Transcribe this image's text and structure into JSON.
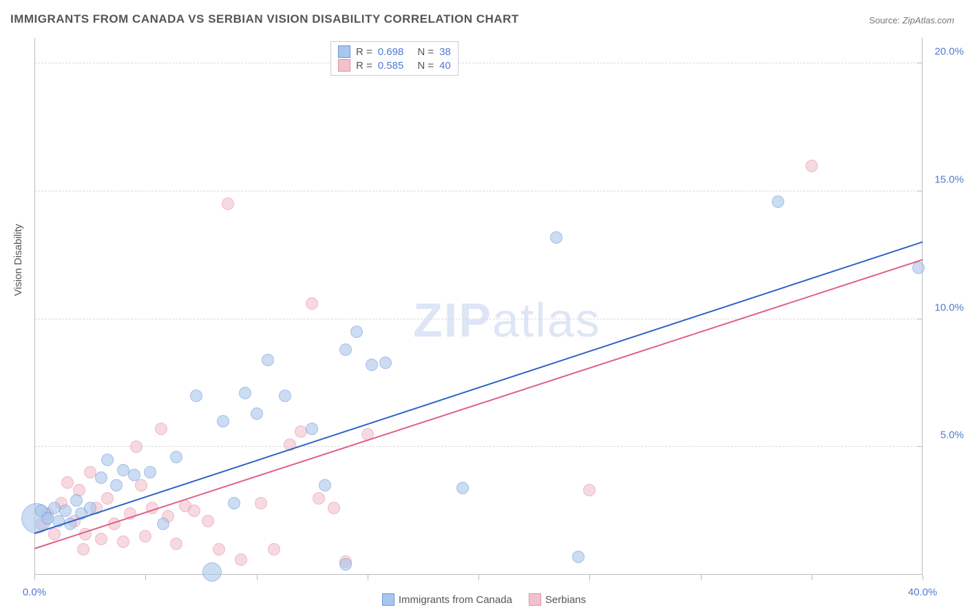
{
  "title": "IMMIGRANTS FROM CANADA VS SERBIAN VISION DISABILITY CORRELATION CHART",
  "source_label": "Source:",
  "source_value": "ZipAtlas.com",
  "watermark": {
    "bold": "ZIP",
    "light": "atlas"
  },
  "y_axis_label": "Vision Disability",
  "chart": {
    "type": "scatter",
    "background_color": "#ffffff",
    "grid_color": "#d8d8d8",
    "axis_color": "#bcbcbc",
    "tick_label_color": "#4d7ad1",
    "label_color": "#555555",
    "tick_label_fontsize": 15,
    "marker_style": "circle",
    "marker_radius": 9,
    "marker_opacity": 0.6,
    "xlim": [
      0.0,
      40.0
    ],
    "ylim": [
      0.0,
      21.0
    ],
    "x_ticks": [
      0,
      5,
      10,
      15,
      20,
      25,
      30,
      35,
      40
    ],
    "x_tick_labels": {
      "0": "0.0%",
      "40": "40.0%"
    },
    "y_ticks": [
      0,
      5,
      10,
      15,
      20
    ],
    "y_tick_labels": {
      "5": "5.0%",
      "10": "10.0%",
      "15": "15.0%",
      "20": "20.0%"
    },
    "series": [
      {
        "name": "Immigrants from Canada",
        "fill_color": "#a9c6ec",
        "stroke_color": "#6995d6",
        "trend_color": "#2f63c4",
        "R": 0.698,
        "N": 38,
        "trend": {
          "x1": 0.0,
          "y1": 1.6,
          "x2": 40.0,
          "y2": 13.0
        },
        "points": [
          [
            0.1,
            2.2,
            22
          ],
          [
            0.3,
            2.5,
            9
          ],
          [
            0.6,
            2.2,
            9
          ],
          [
            0.9,
            2.6,
            9
          ],
          [
            1.1,
            2.1,
            9
          ],
          [
            1.4,
            2.5,
            9
          ],
          [
            1.6,
            2.0,
            9
          ],
          [
            1.9,
            2.9,
            9
          ],
          [
            2.1,
            2.4,
            9
          ],
          [
            2.5,
            2.6,
            9
          ],
          [
            3.0,
            3.8,
            9
          ],
          [
            3.3,
            4.5,
            9
          ],
          [
            3.7,
            3.5,
            9
          ],
          [
            4.0,
            4.1,
            9
          ],
          [
            4.5,
            3.9,
            9
          ],
          [
            5.2,
            4.0,
            9
          ],
          [
            5.8,
            2.0,
            9
          ],
          [
            6.4,
            4.6,
            9
          ],
          [
            7.3,
            7.0,
            9
          ],
          [
            8.0,
            0.1,
            14
          ],
          [
            8.5,
            6.0,
            9
          ],
          [
            9.0,
            2.8,
            9
          ],
          [
            9.5,
            7.1,
            9
          ],
          [
            10.0,
            6.3,
            9
          ],
          [
            10.5,
            8.4,
            9
          ],
          [
            11.3,
            7.0,
            9
          ],
          [
            12.5,
            5.7,
            9
          ],
          [
            13.1,
            3.5,
            9
          ],
          [
            14.0,
            8.8,
            9
          ],
          [
            14.5,
            9.5,
            9
          ],
          [
            15.2,
            8.2,
            9
          ],
          [
            15.8,
            8.3,
            9
          ],
          [
            19.3,
            3.4,
            9
          ],
          [
            23.5,
            13.2,
            9
          ],
          [
            24.5,
            0.7,
            9
          ],
          [
            33.5,
            14.6,
            9
          ],
          [
            39.8,
            12.0,
            9
          ],
          [
            14.0,
            0.4,
            9
          ]
        ]
      },
      {
        "name": "Serbians",
        "fill_color": "#f3c1cd",
        "stroke_color": "#e08da3",
        "trend_color": "#de5f85",
        "R": 0.585,
        "N": 40,
        "trend": {
          "x1": 0.0,
          "y1": 1.0,
          "x2": 40.0,
          "y2": 12.3
        },
        "points": [
          [
            0.3,
            2.0,
            9
          ],
          [
            0.6,
            2.4,
            9
          ],
          [
            0.9,
            1.6,
            9
          ],
          [
            1.2,
            2.8,
            9
          ],
          [
            1.5,
            3.6,
            9
          ],
          [
            1.8,
            2.1,
            9
          ],
          [
            2.0,
            3.3,
            9
          ],
          [
            2.3,
            1.6,
            9
          ],
          [
            2.5,
            4.0,
            9
          ],
          [
            2.8,
            2.6,
            9
          ],
          [
            3.0,
            1.4,
            9
          ],
          [
            3.3,
            3.0,
            9
          ],
          [
            3.6,
            2.0,
            9
          ],
          [
            4.0,
            1.3,
            9
          ],
          [
            4.3,
            2.4,
            9
          ],
          [
            4.6,
            5.0,
            9
          ],
          [
            5.0,
            1.5,
            9
          ],
          [
            5.3,
            2.6,
            9
          ],
          [
            5.7,
            5.7,
            9
          ],
          [
            6.0,
            2.3,
            9
          ],
          [
            6.4,
            1.2,
            9
          ],
          [
            6.8,
            2.7,
            9
          ],
          [
            7.2,
            2.5,
            9
          ],
          [
            7.8,
            2.1,
            9
          ],
          [
            8.3,
            1.0,
            9
          ],
          [
            8.7,
            14.5,
            9
          ],
          [
            9.3,
            0.6,
            9
          ],
          [
            10.2,
            2.8,
            9
          ],
          [
            10.8,
            1.0,
            9
          ],
          [
            11.5,
            5.1,
            9
          ],
          [
            12.0,
            5.6,
            9
          ],
          [
            12.5,
            10.6,
            9
          ],
          [
            12.8,
            3.0,
            9
          ],
          [
            13.5,
            2.6,
            9
          ],
          [
            14.0,
            0.5,
            9
          ],
          [
            15.0,
            5.5,
            9
          ],
          [
            25.0,
            3.3,
            9
          ],
          [
            35.0,
            16.0,
            9
          ],
          [
            2.2,
            1.0,
            9
          ],
          [
            4.8,
            3.5,
            9
          ]
        ]
      }
    ]
  },
  "stat_legend": {
    "rows": [
      {
        "swatch_fill": "#a9c6ec",
        "swatch_stroke": "#6995d6",
        "R": "0.698",
        "N": "38"
      },
      {
        "swatch_fill": "#f3c1cd",
        "swatch_stroke": "#e08da3",
        "R": "0.585",
        "N": "40"
      }
    ]
  },
  "bottom_legend": [
    {
      "swatch_fill": "#a9c6ec",
      "swatch_stroke": "#6995d6",
      "label": "Immigrants from Canada"
    },
    {
      "swatch_fill": "#f3c1cd",
      "swatch_stroke": "#e08da3",
      "label": "Serbians"
    }
  ]
}
